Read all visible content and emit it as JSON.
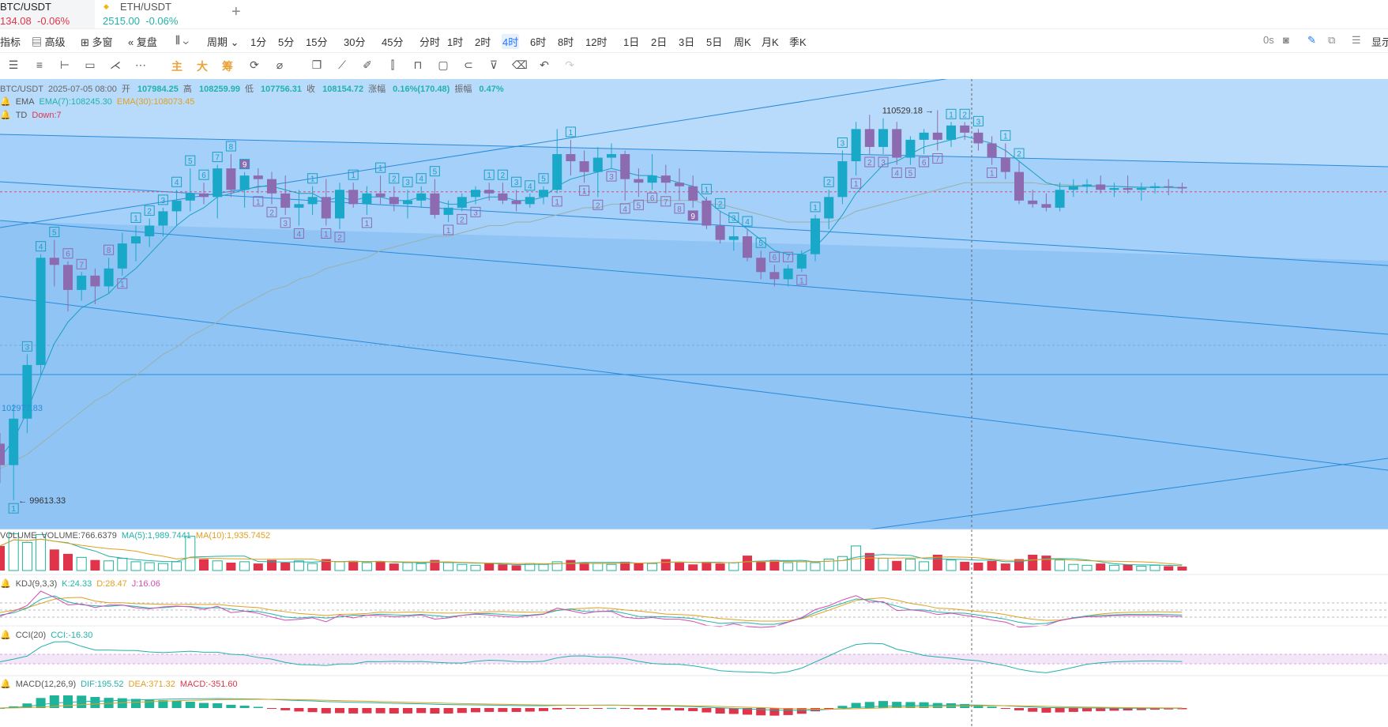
{
  "tabs": [
    {
      "symbol": "BTC/USDT",
      "price": "134.08",
      "change": "-0.06%"
    },
    {
      "symbol": "ETH/USDT",
      "price": "2515.00",
      "change": "-0.06%"
    }
  ],
  "toolbar": {
    "indicator": "指标",
    "advanced": "高级",
    "multi_window": "多窗",
    "replay": "复盘",
    "period": "周期",
    "intervals": [
      "1分",
      "5分",
      "15分",
      "30分",
      "45分",
      "分时",
      "1时",
      "2时",
      "4时",
      "6时",
      "8时",
      "12时",
      "1日",
      "2日",
      "3日",
      "5日",
      "周K",
      "月K",
      "季K"
    ],
    "active_interval": "4时",
    "right_label": "0s",
    "display_label": "显示"
  },
  "tools": {
    "main": "主",
    "big": "大",
    "chip": "筹"
  },
  "ohlc": {
    "symbol": "BTC/USDT",
    "datetime": "2025-07-05 08:00",
    "open_label": "开",
    "open": "107984.25",
    "high_label": "高",
    "high": "108259.99",
    "low_label": "低",
    "low": "107756.31",
    "close_label": "收",
    "close": "108154.72",
    "chg_label": "涨幅",
    "chg": "0.16%(170.48)",
    "amp_label": "振幅",
    "amp": "0.47%"
  },
  "ema": {
    "name": "EMA",
    "ema7": "EMA(7):108245.30",
    "ema30": "EMA(30):108073.45"
  },
  "td": {
    "name": "TD",
    "value": "Down:7"
  },
  "volume": {
    "name": "VOLUME",
    "value": "VOLUME:766.6379",
    "ma5": "MA(5):1,989.7441",
    "ma10": "MA(10):1,935.7452"
  },
  "kdj": {
    "name": "KDJ(9,3,3)",
    "k": "K:24.33",
    "d": "D:28.47",
    "j": "J:16.06"
  },
  "cci": {
    "name": "CCI(20)",
    "value": "CCI:-16.30"
  },
  "macd": {
    "name": "MACD(12,26,9)",
    "dif": "DIF:195.52",
    "dea": "DEA:371.32",
    "macd": "MACD:-351.60"
  },
  "colors": {
    "up": "#1aa8c9",
    "down": "#8c6bb0",
    "bg": "#8fc4f5",
    "vol_up": "#1fb39a",
    "vol_down": "#e0344a"
  },
  "chart_data": {
    "type": "candlestick",
    "symbol": "BTC/USDT",
    "interval": "4时",
    "annotations": {
      "high_marker": "110529.18",
      "low_marker": "99613.33",
      "left_label": "102977.83"
    },
    "candles": [
      [
        101200,
        101500,
        100100,
        100600
      ],
      [
        100600,
        102300,
        99613,
        101900
      ],
      [
        101900,
        103700,
        101500,
        103400
      ],
      [
        103400,
        106500,
        103100,
        106400
      ],
      [
        106400,
        106900,
        105600,
        106200
      ],
      [
        106200,
        106300,
        104900,
        105500
      ],
      [
        105500,
        106000,
        105200,
        105900
      ],
      [
        105900,
        106100,
        105100,
        105600
      ],
      [
        105600,
        106400,
        105400,
        106100
      ],
      [
        106100,
        107100,
        105900,
        106800
      ],
      [
        106800,
        107300,
        106300,
        107000
      ],
      [
        107000,
        107500,
        106700,
        107300
      ],
      [
        107300,
        107800,
        107000,
        107700
      ],
      [
        107700,
        108300,
        107300,
        108000
      ],
      [
        108000,
        108900,
        107700,
        108200
      ],
      [
        108200,
        108500,
        107900,
        108100
      ],
      [
        108100,
        109000,
        107500,
        108900
      ],
      [
        108900,
        109300,
        108100,
        108300
      ],
      [
        108300,
        108800,
        107800,
        108700
      ],
      [
        108700,
        108900,
        108200,
        108600
      ],
      [
        108600,
        108800,
        107900,
        108200
      ],
      [
        108200,
        108700,
        107600,
        107800
      ],
      [
        107800,
        108300,
        107300,
        107900
      ],
      [
        107900,
        108400,
        107600,
        108100
      ],
      [
        108100,
        108600,
        107300,
        107500
      ],
      [
        107500,
        108500,
        107200,
        108300
      ],
      [
        108300,
        108500,
        107800,
        107900
      ],
      [
        107900,
        108400,
        107600,
        108200
      ],
      [
        108200,
        108700,
        107900,
        108100
      ],
      [
        108100,
        108400,
        107700,
        107900
      ],
      [
        107900,
        108300,
        107500,
        108000
      ],
      [
        108000,
        108400,
        107800,
        108200
      ],
      [
        108200,
        108600,
        107500,
        107600
      ],
      [
        107600,
        108000,
        107400,
        107800
      ],
      [
        107800,
        108200,
        107700,
        108100
      ],
      [
        108100,
        108400,
        107900,
        108300
      ],
      [
        108300,
        108500,
        108000,
        108200
      ],
      [
        108200,
        108500,
        107900,
        108000
      ],
      [
        108000,
        108300,
        107700,
        107900
      ],
      [
        107900,
        108200,
        107800,
        108100
      ],
      [
        108100,
        108400,
        107900,
        108300
      ],
      [
        108300,
        110000,
        108200,
        109300
      ],
      [
        109300,
        109700,
        108700,
        109100
      ],
      [
        109100,
        109400,
        108500,
        108800
      ],
      [
        108800,
        109500,
        108100,
        109200
      ],
      [
        109200,
        109600,
        108900,
        109300
      ],
      [
        109300,
        109400,
        108000,
        108600
      ],
      [
        108600,
        108900,
        108100,
        108500
      ],
      [
        108500,
        109300,
        108300,
        108700
      ],
      [
        108700,
        109000,
        108200,
        108500
      ],
      [
        108500,
        108900,
        108000,
        108400
      ],
      [
        108400,
        108700,
        107800,
        108000
      ],
      [
        108000,
        108100,
        107200,
        107300
      ],
      [
        107300,
        107700,
        106800,
        106900
      ],
      [
        106900,
        107300,
        106600,
        107000
      ],
      [
        107000,
        107200,
        106300,
        106400
      ],
      [
        106400,
        106600,
        105800,
        106000
      ],
      [
        106000,
        106200,
        105600,
        105800
      ],
      [
        105800,
        106200,
        105600,
        106100
      ],
      [
        106100,
        106600,
        106000,
        106500
      ],
      [
        106500,
        107600,
        106300,
        107500
      ],
      [
        107500,
        108300,
        107200,
        108100
      ],
      [
        108100,
        109400,
        107900,
        109100
      ],
      [
        109100,
        110200,
        108700,
        110000
      ],
      [
        110000,
        110400,
        109300,
        109500
      ],
      [
        109500,
        110300,
        109300,
        110000
      ],
      [
        110000,
        110200,
        109000,
        109200
      ],
      [
        109200,
        109800,
        109000,
        109700
      ],
      [
        109700,
        110000,
        109300,
        109900
      ],
      [
        109900,
        110529,
        109400,
        109700
      ],
      [
        109700,
        110200,
        109500,
        110100
      ],
      [
        110100,
        110200,
        109700,
        109900
      ],
      [
        109900,
        110000,
        109400,
        109600
      ],
      [
        109600,
        109800,
        109000,
        109200
      ],
      [
        109200,
        109600,
        108600,
        108800
      ],
      [
        108800,
        109100,
        107900,
        108000
      ],
      [
        108000,
        108300,
        107800,
        107900
      ],
      [
        107900,
        108200,
        107700,
        107800
      ],
      [
        107800,
        108500,
        107700,
        108300
      ],
      [
        108300,
        108600,
        108100,
        108400
      ],
      [
        108400,
        108600,
        108200,
        108450
      ],
      [
        108450,
        108700,
        108200,
        108300
      ],
      [
        108300,
        108500,
        108100,
        108350
      ],
      [
        108350,
        108700,
        108200,
        108300
      ],
      [
        108300,
        108500,
        108000,
        108350
      ],
      [
        108350,
        108500,
        108200,
        108400
      ],
      [
        108400,
        108600,
        108150,
        108380
      ],
      [
        108380,
        108500,
        108200,
        108340
      ]
    ],
    "td_labels": [
      [
        1,
        "1",
        "up",
        "below"
      ],
      [
        2,
        "3",
        "up",
        "above"
      ],
      [
        3,
        "4",
        "up",
        "above"
      ],
      [
        4,
        "5",
        "up",
        "above"
      ],
      [
        5,
        "6",
        "down",
        "above"
      ],
      [
        6,
        "7",
        "down",
        "above"
      ],
      [
        8,
        "8",
        "down",
        "above"
      ],
      [
        9,
        "1",
        "down",
        "below"
      ],
      [
        10,
        "1",
        "up",
        "above"
      ],
      [
        11,
        "2",
        "up",
        "above"
      ],
      [
        12,
        "3",
        "up",
        "above"
      ],
      [
        13,
        "4",
        "up",
        "above"
      ],
      [
        14,
        "5",
        "up",
        "above"
      ],
      [
        15,
        "6",
        "up",
        "above"
      ],
      [
        16,
        "7",
        "up",
        "above"
      ],
      [
        17,
        "8",
        "up",
        "above"
      ],
      [
        18,
        "9",
        "up",
        "above"
      ],
      [
        19,
        "1",
        "down",
        "below"
      ],
      [
        20,
        "2",
        "down",
        "below"
      ],
      [
        21,
        "3",
        "down",
        "below"
      ],
      [
        22,
        "4",
        "down",
        "below"
      ],
      [
        23,
        "1",
        "up",
        "above"
      ],
      [
        24,
        "1",
        "down",
        "below"
      ],
      [
        25,
        "2",
        "down",
        "below"
      ],
      [
        26,
        "1",
        "up",
        "above"
      ],
      [
        27,
        "1",
        "down",
        "below"
      ],
      [
        28,
        "1",
        "up",
        "above"
      ],
      [
        29,
        "2",
        "up",
        "above"
      ],
      [
        30,
        "3",
        "up",
        "above"
      ],
      [
        31,
        "4",
        "up",
        "above"
      ],
      [
        32,
        "5",
        "up",
        "above"
      ],
      [
        33,
        "1",
        "down",
        "below"
      ],
      [
        34,
        "2",
        "down",
        "below"
      ],
      [
        35,
        "3",
        "down",
        "below"
      ],
      [
        36,
        "1",
        "up",
        "above"
      ],
      [
        37,
        "2",
        "up",
        "above"
      ],
      [
        38,
        "3",
        "up",
        "above"
      ],
      [
        39,
        "4",
        "up",
        "above"
      ],
      [
        40,
        "5",
        "up",
        "above"
      ],
      [
        41,
        "1",
        "down",
        "below"
      ],
      [
        42,
        "1",
        "up",
        "above"
      ],
      [
        43,
        "1",
        "down",
        "below"
      ],
      [
        44,
        "2",
        "down",
        "below"
      ],
      [
        45,
        "3",
        "down",
        "below"
      ],
      [
        46,
        "4",
        "down",
        "below"
      ],
      [
        47,
        "5",
        "down",
        "below"
      ],
      [
        48,
        "6",
        "down",
        "below"
      ],
      [
        49,
        "7",
        "down",
        "below"
      ],
      [
        50,
        "8",
        "down",
        "below"
      ],
      [
        51,
        "9",
        "down",
        "below"
      ],
      [
        52,
        "1",
        "up",
        "above"
      ],
      [
        53,
        "2",
        "up",
        "above"
      ],
      [
        54,
        "3",
        "up",
        "above"
      ],
      [
        55,
        "4",
        "up",
        "above"
      ],
      [
        56,
        "5",
        "up",
        "above"
      ],
      [
        57,
        "6",
        "down",
        "above"
      ],
      [
        58,
        "7",
        "down",
        "above"
      ],
      [
        59,
        "1",
        "down",
        "below"
      ],
      [
        60,
        "1",
        "up",
        "above"
      ],
      [
        61,
        "2",
        "up",
        "above"
      ],
      [
        62,
        "3",
        "up",
        "above"
      ],
      [
        63,
        "1",
        "down",
        "below"
      ],
      [
        64,
        "2",
        "down",
        "below"
      ],
      [
        65,
        "3",
        "down",
        "below"
      ],
      [
        66,
        "4",
        "down",
        "below"
      ],
      [
        67,
        "5",
        "down",
        "below"
      ],
      [
        68,
        "6",
        "down",
        "below"
      ],
      [
        69,
        "7",
        "down",
        "below"
      ],
      [
        70,
        "1",
        "up",
        "above"
      ],
      [
        71,
        "2",
        "up",
        "above"
      ],
      [
        72,
        "3",
        "up",
        "above"
      ],
      [
        73,
        "1",
        "down",
        "below"
      ],
      [
        74,
        "1",
        "up",
        "above"
      ],
      [
        75,
        "2",
        "up",
        "above"
      ]
    ],
    "ema7": [
      100800,
      101300,
      102100,
      103100,
      104000,
      104600,
      105000,
      105200,
      105400,
      105800,
      106100,
      106500,
      106900,
      107300,
      107600,
      107800,
      108100,
      108200,
      108300,
      108400,
      108400,
      108300,
      108200,
      108200,
      108000,
      108100,
      108000,
      108100,
      108100,
      108000,
      108000,
      108100,
      108000,
      107900,
      107900,
      108000,
      108100,
      108100,
      108000,
      108000,
      108100,
      108400,
      108600,
      108700,
      108800,
      108900,
      108800,
      108700,
      108700,
      108600,
      108500,
      108400,
      108000,
      107700,
      107500,
      107200,
      106900,
      106600,
      106500,
      106500,
      106700,
      107100,
      107600,
      108200,
      108600,
      109000,
      109100,
      109300,
      109500,
      109600,
      109700,
      109800,
      109700,
      109600,
      109400,
      109100,
      108800,
      108500,
      108400,
      108400,
      108400,
      108400,
      108400,
      108380,
      108370,
      108370,
      108375,
      108360
    ],
    "ema30": [
      100500,
      100700,
      100900,
      101200,
      101500,
      101800,
      102100,
      102400,
      102600,
      102900,
      103100,
      103400,
      103700,
      103900,
      104200,
      104400,
      104600,
      104900,
      105100,
      105300,
      105500,
      105600,
      105800,
      105900,
      106100,
      106200,
      106300,
      106400,
      106600,
      106700,
      106800,
      106900,
      107000,
      107000,
      107100,
      107200,
      107300,
      107300,
      107400,
      107400,
      107500,
      107600,
      107700,
      107800,
      107800,
      107900,
      107900,
      108000,
      108000,
      108000,
      108000,
      108000,
      107900,
      107900,
      107800,
      107700,
      107600,
      107500,
      107400,
      107400,
      107400,
      107400,
      107500,
      107700,
      107800,
      107900,
      108000,
      108100,
      108200,
      108300,
      108400,
      108500,
      108500,
      108500,
      108500,
      108500,
      108500,
      108450,
      108450,
      108430,
      108420,
      108410,
      108400,
      108390,
      108380,
      108370,
      108360,
      108350
    ],
    "volume": [
      2800,
      4200,
      3200,
      4100,
      2400,
      1900,
      1500,
      1200,
      1100,
      1400,
      1000,
      900,
      800,
      1000,
      3900,
      1300,
      1100,
      900,
      1000,
      800,
      1200,
      900,
      1100,
      800,
      1300,
      1000,
      1100,
      900,
      1000,
      800,
      900,
      800,
      1200,
      900,
      700,
      600,
      800,
      700,
      600,
      800,
      700,
      1000,
      1200,
      900,
      800,
      700,
      1000,
      900,
      800,
      1300,
      900,
      700,
      1000,
      800,
      900,
      1700,
      1000,
      1200,
      900,
      1000,
      900,
      1300,
      1600,
      2800,
      2000,
      1400,
      1100,
      1300,
      1000,
      1800,
      1200,
      1000,
      900,
      1100,
      800,
      1300,
      1800,
      1700,
      1200,
      700,
      600,
      800,
      600,
      700,
      500,
      600,
      500,
      450
    ]
  }
}
